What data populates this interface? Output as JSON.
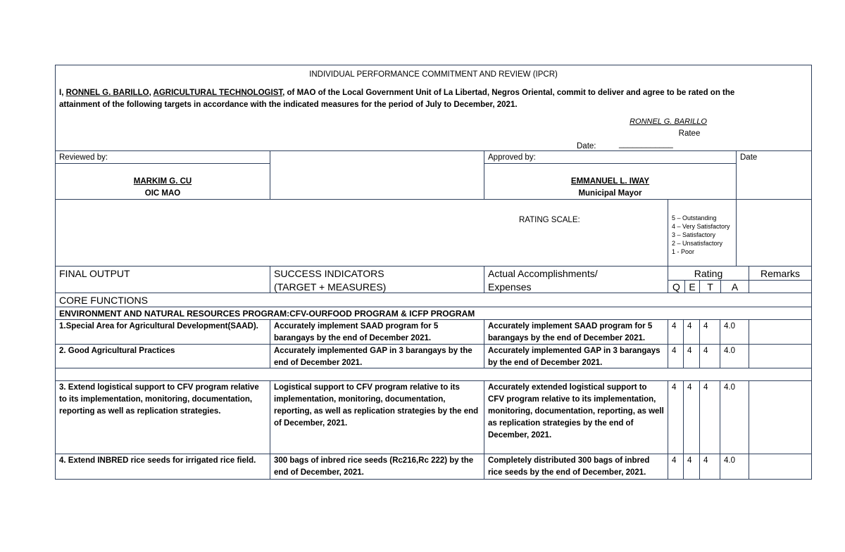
{
  "header": {
    "title": "INDIVIDUAL PERFORMANCE COMMITMENT AND REVIEW (IPCR)",
    "commitment": {
      "prefix": "I, ",
      "name": "RONNEL G. BARILLO",
      "sep": ", ",
      "position": "AGRICULTURAL TECHNOLOGIST",
      "body": ", of MAO of the Local Government Unit of La Libertad, Negros Oriental, commit to deliver and agree to be rated on the attainment of the following targets in accordance with the indicated measures for the period of July to December, 2021."
    },
    "ratee_name": "RONNEL G. BARILLO",
    "ratee_label": "Ratee",
    "date_label": "Date:",
    "date_value": "____________"
  },
  "signatories": {
    "reviewed_label": "Reviewed by:",
    "reviewer_name": "MARKIM G. CU",
    "reviewer_title": "OIC MAO",
    "approved_label": "Approved by:",
    "approver_name": "EMMANUEL L. IWAY",
    "approver_title": "Municipal Mayor",
    "date_label": "Date"
  },
  "rating_scale": {
    "label": "RATING SCALE:",
    "items": [
      "5 – Outstanding",
      "4 – Very Satisfactory",
      "3 – Satisfactory",
      "2 – Unsatisfactory",
      "1 - Poor"
    ]
  },
  "columns": {
    "final_output": "FINAL OUTPUT",
    "success_1": "SUCCESS INDICATORS",
    "success_2": "(TARGET + MEASURES)",
    "actual_1": "Actual Accomplishments/",
    "actual_2": "Expenses",
    "rating": "Rating",
    "q": "Q",
    "e": "E",
    "t": "T",
    "a": "A",
    "remarks": "Remarks"
  },
  "sections": {
    "core": "CORE FUNCTIONS",
    "program": "ENVIRONMENT AND NATURAL RESOURCES PROGRAM:CFV-OURFOOD PROGRAM & ICFP PROGRAM"
  },
  "rows": [
    {
      "output": "1.Special Area for Agricultural Development(SAAD).",
      "indicator": "Accurately implement SAAD program for 5 barangays by the end of December 2021.",
      "actual": "Accurately implement SAAD program for 5 barangays by the end of December 2021.",
      "q": "4",
      "e": "4",
      "t": "4",
      "a": "4.0",
      "remarks": ""
    },
    {
      "output": "2. Good Agricultural Practices",
      "indicator": "Accurately implemented GAP in 3 barangays by the end of December 2021.",
      "actual": "Accurately implemented GAP in 3 barangays by the end of December 2021.",
      "q": "4",
      "e": "4",
      "t": "4",
      "a": "4.0",
      "remarks": ""
    },
    {
      "output": "3. Extend logistical support to CFV program relative to its implementation, monitoring, documentation, reporting as well as replication strategies.",
      "indicator": "Logistical support to CFV program relative to its implementation, monitoring, documentation, reporting, as well as replication strategies by the end of December, 2021.",
      "actual": "Accurately extended logistical support to CFV program relative to its implementation, monitoring, documentation, reporting, as well as replication strategies by the end of December, 2021.",
      "q": "4",
      "e": "4",
      "t": "4",
      "a": "4.0",
      "remarks": ""
    },
    {
      "output": "4. Extend INBRED rice seeds for irrigated rice field.",
      "indicator": "300 bags of inbred rice seeds (Rc216,Rc 222) by the end of December, 2021.",
      "actual": "Completely distributed 300 bags of inbred rice seeds by the end of December, 2021.",
      "q": "4",
      "e": "4",
      "t": "4",
      "a": "4.0",
      "remarks": ""
    }
  ]
}
